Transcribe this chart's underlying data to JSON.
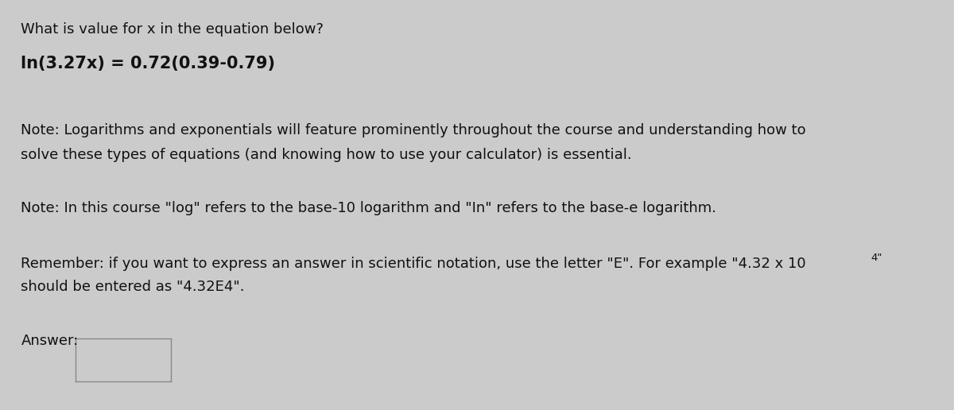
{
  "bg_color": "#cbcbcb",
  "text_color": "#111111",
  "font_family": "DejaVu Sans",
  "line1": "What is value for x in the equation below?",
  "line2": "ln(3.27x) = 0.72(0.39-0.79)",
  "note1a": "Note: Logarithms and exponentials will feature prominently throughout the course and understanding how to",
  "note1b": "solve these types of equations (and knowing how to use your calculator) is essential.",
  "note2": "Note: In this course \"log\" refers to the base-10 logarithm and \"In\" refers to the base-e logarithm.",
  "note3a": "Remember: if you want to express an answer in scientific notation, use the letter \"E\". For example \"4.32 x 10",
  "note3a_sup": "4\"",
  "note3b": "should be entered as \"4.32E4\".",
  "answer_label": "Answer:",
  "font_size_main": 13.0,
  "font_size_equation": 15.0,
  "font_size_sup": 9.5
}
